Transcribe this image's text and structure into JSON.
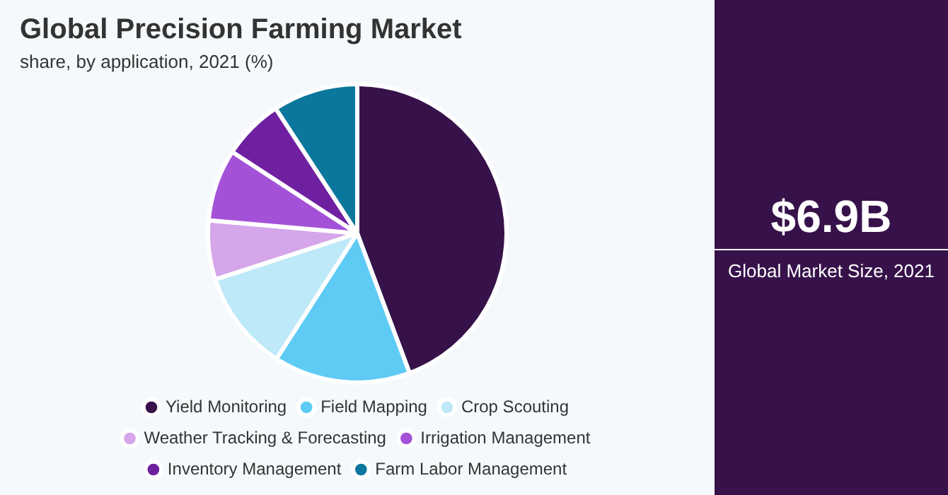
{
  "chart_data": {
    "type": "pie",
    "title": "Global Precision Farming Market",
    "subtitle": "share, by application, 2021 (%)",
    "categories": [
      "Yield Monitoring",
      "Field Mapping",
      "Crop Scouting",
      "Weather Tracking & Forecasting",
      "Irrigation Management",
      "Inventory Management",
      "Farm Labor Management"
    ],
    "values": [
      44.3,
      14.8,
      10.9,
      6.4,
      7.8,
      6.6,
      9.2
    ],
    "colors": [
      "#37124a",
      "#5ecbf5",
      "#bde9f8",
      "#d5a6ea",
      "#a352d8",
      "#6f20a0",
      "#0b779c"
    ],
    "legend": "bottom",
    "annotations": [
      "$6.9B",
      "Global Market Size, 2021"
    ]
  }
}
